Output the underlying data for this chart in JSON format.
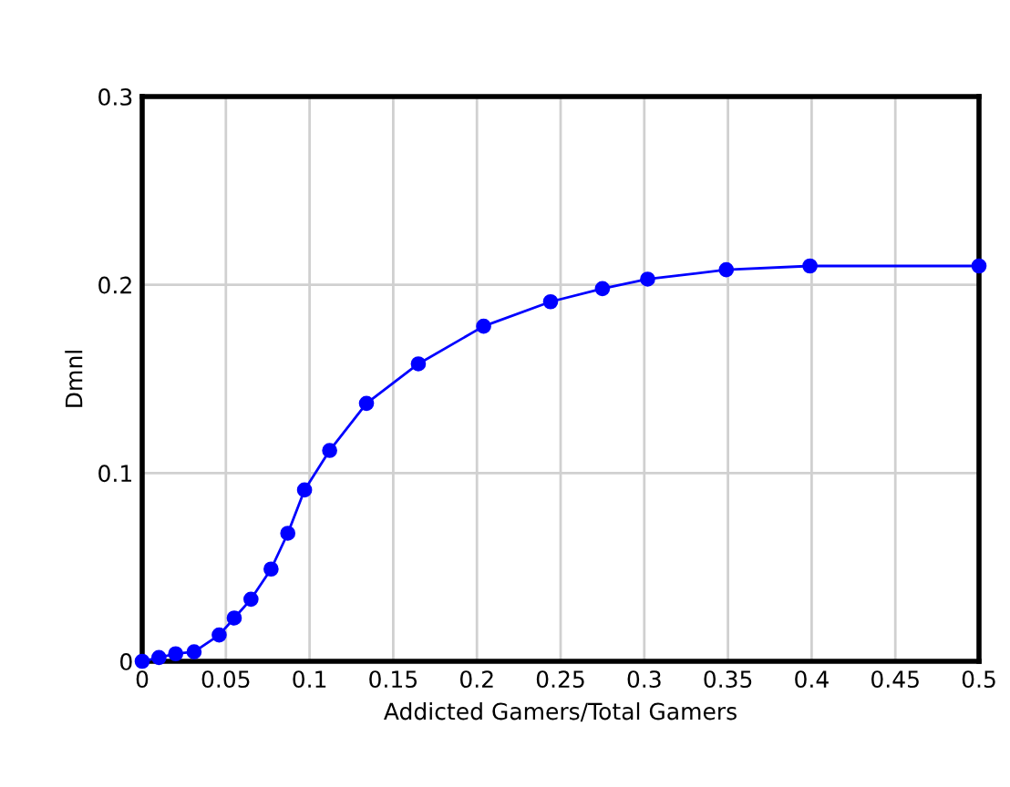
{
  "chart_data": {
    "type": "line",
    "xlabel": "Addicted Gamers/Total Gamers",
    "ylabel": "Dmnl",
    "x": [
      0,
      0.01,
      0.02,
      0.031,
      0.046,
      0.055,
      0.065,
      0.077,
      0.087,
      0.097,
      0.112,
      0.134,
      0.165,
      0.204,
      0.244,
      0.275,
      0.302,
      0.349,
      0.399,
      0.5
    ],
    "series": [
      {
        "color": "#0000ff",
        "values": [
          0,
          0.002,
          0.004,
          0.005,
          0.014,
          0.023,
          0.033,
          0.049,
          0.068,
          0.091,
          0.112,
          0.137,
          0.158,
          0.178,
          0.191,
          0.198,
          0.203,
          0.208,
          0.21,
          0.21
        ]
      }
    ],
    "xlim": [
      0,
      0.5
    ],
    "ylim": [
      0,
      0.3
    ],
    "xticks": [
      0,
      0.05,
      0.1,
      0.15,
      0.2,
      0.25,
      0.3,
      0.35,
      0.4,
      0.45,
      0.5
    ],
    "yticks": [
      0,
      0.1,
      0.2,
      0.3
    ],
    "grid": true,
    "marker": "circle",
    "line_style": "solid"
  }
}
